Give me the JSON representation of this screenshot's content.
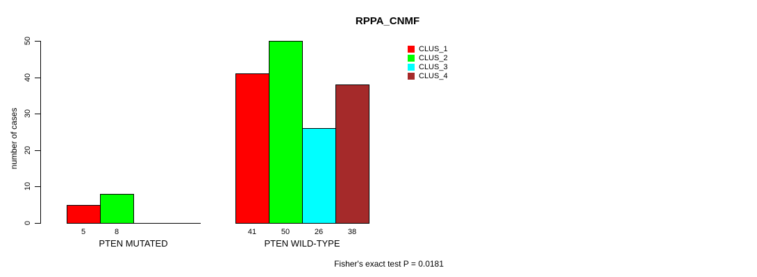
{
  "chart_data": {
    "type": "bar",
    "title": "RPPA_CNMF",
    "ylabel": "number of cases",
    "ylim": [
      0,
      50
    ],
    "yticks": [
      0,
      10,
      20,
      30,
      40,
      50
    ],
    "grid": false,
    "legend_position": "top-right-inside-plot",
    "series": [
      {
        "name": "CLUS_1",
        "color": "#ff0000"
      },
      {
        "name": "CLUS_2",
        "color": "#00ff00"
      },
      {
        "name": "CLUS_3",
        "color": "#00ffff"
      },
      {
        "name": "CLUS_4",
        "color": "#a52a2a"
      }
    ],
    "categories": [
      "PTEN MUTATED",
      "PTEN WILD-TYPE"
    ],
    "groups": [
      {
        "label": "PTEN MUTATED",
        "values": [
          5,
          8,
          0,
          0
        ],
        "value_labels": [
          "5",
          "8",
          "",
          ""
        ]
      },
      {
        "label": "PTEN WILD-TYPE",
        "values": [
          41,
          50,
          26,
          38
        ],
        "value_labels": [
          "41",
          "50",
          "26",
          "38"
        ]
      }
    ],
    "footnote": "Fisher's exact test P = 0.0181"
  }
}
